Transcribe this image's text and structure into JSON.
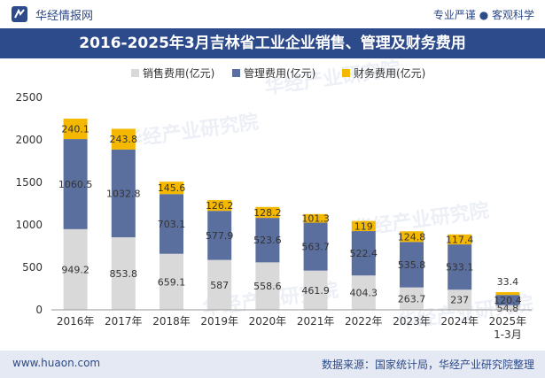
{
  "header": {
    "brand": "华经情报网",
    "tagline": "专业严谨 ● 客观科学"
  },
  "footer": {
    "site": "www.huaon.com",
    "source": "数据来源：国家统计局，华经产业研究院整理"
  },
  "watermark": "华经产业研究院",
  "colors": {
    "sales": "#d9d9d9",
    "management": "#5b6f9e",
    "finance": "#f5b800",
    "title_bg": "#2d4a8a"
  },
  "chart_data": {
    "type": "bar",
    "stacked": true,
    "title": "2016-2025年3月吉林省工业企业销售、管理及财务费用",
    "categories": [
      "2016年",
      "2017年",
      "2018年",
      "2019年",
      "2020年",
      "2021年",
      "2022年",
      "2023年",
      "2024年",
      "2025年\n1-3月"
    ],
    "series": [
      {
        "name": "销售费用(亿元)",
        "values": [
          949.2,
          853.8,
          659.1,
          587,
          558.6,
          461.9,
          404.3,
          263.7,
          237,
          54.8
        ]
      },
      {
        "name": "管理费用(亿元)",
        "values": [
          1060.5,
          1032.8,
          703.1,
          577.9,
          523.6,
          563.7,
          522.4,
          535.8,
          533.1,
          120.4
        ]
      },
      {
        "name": "财务费用(亿元)",
        "values": [
          240.1,
          243.8,
          145.6,
          126.2,
          128.2,
          101.3,
          119,
          124.8,
          117.4,
          33.4
        ]
      }
    ],
    "ylim": [
      0,
      2500
    ],
    "yticks": [
      0,
      500,
      1000,
      1500,
      2000,
      2500
    ],
    "legend": "top"
  }
}
